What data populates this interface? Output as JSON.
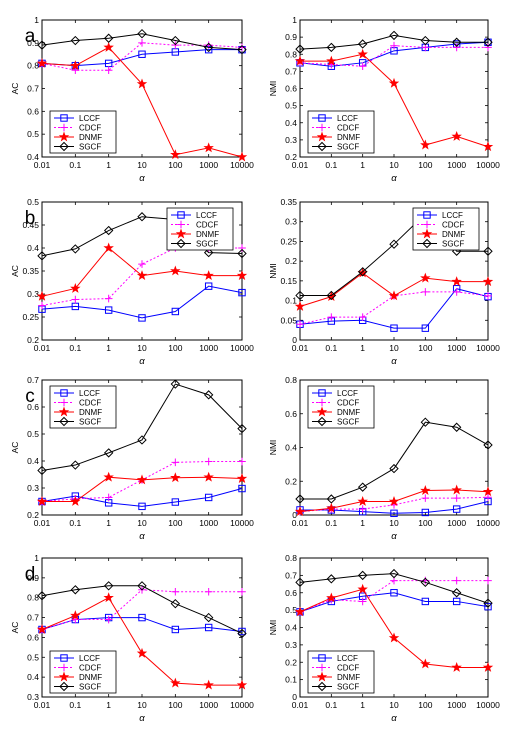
{
  "chart_data": [
    {
      "type": "line",
      "row_label": "a",
      "x": [
        "0.01",
        "0.1",
        "1",
        "10",
        "100",
        "1000",
        "10000"
      ],
      "xlabel": "α",
      "ylabel": "AC",
      "ylim": [
        0.4,
        1
      ],
      "yticks": [
        "0.4",
        "0.5",
        "0.6",
        "0.7",
        "0.8",
        "0.9",
        "1"
      ],
      "legend": "bottom-left",
      "series": [
        {
          "name": "LCCF",
          "color": "#0000ff",
          "marker": "square",
          "dashed": false,
          "values": [
            0.81,
            0.8,
            0.81,
            0.85,
            0.86,
            0.87,
            0.87
          ]
        },
        {
          "name": "CDCF",
          "color": "#ff00ff",
          "marker": "plus",
          "dashed": true,
          "values": [
            0.81,
            0.78,
            0.78,
            0.9,
            0.89,
            0.89,
            0.88
          ]
        },
        {
          "name": "DNMF",
          "color": "#ff0000",
          "marker": "star",
          "dashed": false,
          "values": [
            0.81,
            0.8,
            0.88,
            0.72,
            0.41,
            0.44,
            0.4
          ]
        },
        {
          "name": "SGCF",
          "color": "#000000",
          "marker": "diamond",
          "dashed": false,
          "values": [
            0.89,
            0.91,
            0.92,
            0.94,
            0.91,
            0.88,
            0.87
          ]
        }
      ]
    },
    {
      "type": "line",
      "row_label": "",
      "x": [
        "0.01",
        "0.1",
        "1",
        "10",
        "100",
        "1000",
        "10000"
      ],
      "xlabel": "α",
      "ylabel": "NMI",
      "ylim": [
        0.2,
        1
      ],
      "yticks": [
        "0.2",
        "0.3",
        "0.4",
        "0.5",
        "0.6",
        "0.7",
        "0.8",
        "0.9",
        "1"
      ],
      "legend": "bottom-left",
      "series": [
        {
          "name": "LCCF",
          "color": "#0000ff",
          "marker": "square",
          "dashed": false,
          "values": [
            0.75,
            0.73,
            0.75,
            0.82,
            0.84,
            0.86,
            0.87
          ]
        },
        {
          "name": "CDCF",
          "color": "#ff00ff",
          "marker": "plus",
          "dashed": true,
          "values": [
            0.75,
            0.74,
            0.73,
            0.85,
            0.84,
            0.84,
            0.84
          ]
        },
        {
          "name": "DNMF",
          "color": "#ff0000",
          "marker": "star",
          "dashed": false,
          "values": [
            0.76,
            0.76,
            0.8,
            0.63,
            0.27,
            0.32,
            0.26
          ]
        },
        {
          "name": "SGCF",
          "color": "#000000",
          "marker": "diamond",
          "dashed": false,
          "values": [
            0.83,
            0.84,
            0.86,
            0.91,
            0.88,
            0.87,
            0.87
          ]
        }
      ]
    },
    {
      "type": "line",
      "row_label": "b",
      "x": [
        "0.01",
        "0.1",
        "1",
        "10",
        "100",
        "1000",
        "10000"
      ],
      "xlabel": "α",
      "ylabel": "AC",
      "ylim": [
        0.2,
        0.5
      ],
      "yticks": [
        "0.2",
        "0.25",
        "0.3",
        "0.35",
        "0.4",
        "0.45",
        "0.5"
      ],
      "legend": "top-right",
      "series": [
        {
          "name": "LCCF",
          "color": "#0000ff",
          "marker": "square",
          "dashed": false,
          "values": [
            0.267,
            0.273,
            0.265,
            0.248,
            0.262,
            0.317,
            0.303
          ]
        },
        {
          "name": "CDCF",
          "color": "#ff00ff",
          "marker": "plus",
          "dashed": true,
          "values": [
            0.275,
            0.288,
            0.29,
            0.365,
            0.4,
            0.4,
            0.4
          ]
        },
        {
          "name": "DNMF",
          "color": "#ff0000",
          "marker": "star",
          "dashed": false,
          "values": [
            0.295,
            0.312,
            0.4,
            0.34,
            0.35,
            0.34,
            0.34
          ]
        },
        {
          "name": "SGCF",
          "color": "#000000",
          "marker": "diamond",
          "dashed": false,
          "values": [
            0.383,
            0.398,
            0.438,
            0.468,
            0.462,
            0.39,
            0.388
          ]
        }
      ]
    },
    {
      "type": "line",
      "row_label": "",
      "x": [
        "0.01",
        "0.1",
        "1",
        "10",
        "100",
        "1000",
        "10000"
      ],
      "xlabel": "α",
      "ylabel": "NMI",
      "ylim": [
        0,
        0.35
      ],
      "yticks": [
        "0",
        "0.05",
        "0.1",
        "0.15",
        "0.2",
        "0.25",
        "0.3",
        "0.35"
      ],
      "legend": "top-right",
      "series": [
        {
          "name": "LCCF",
          "color": "#0000ff",
          "marker": "square",
          "dashed": false,
          "values": [
            0.04,
            0.048,
            0.05,
            0.03,
            0.03,
            0.13,
            0.11
          ]
        },
        {
          "name": "CDCF",
          "color": "#ff00ff",
          "marker": "plus",
          "dashed": true,
          "values": [
            0.04,
            0.058,
            0.058,
            0.112,
            0.122,
            0.122,
            0.112
          ]
        },
        {
          "name": "DNMF",
          "color": "#ff0000",
          "marker": "star",
          "dashed": false,
          "values": [
            0.085,
            0.11,
            0.17,
            0.112,
            0.157,
            0.148,
            0.148
          ]
        },
        {
          "name": "SGCF",
          "color": "#000000",
          "marker": "diamond",
          "dashed": false,
          "values": [
            0.113,
            0.113,
            0.173,
            0.243,
            0.32,
            0.225,
            0.225
          ]
        }
      ]
    },
    {
      "type": "line",
      "row_label": "c",
      "x": [
        "0.01",
        "0.1",
        "1",
        "10",
        "100",
        "1000",
        "10000"
      ],
      "xlabel": "α",
      "ylabel": "AC",
      "ylim": [
        0.2,
        0.7
      ],
      "yticks": [
        "0.2",
        "0.3",
        "0.4",
        "0.5",
        "0.6",
        "0.7"
      ],
      "legend": "top-left",
      "series": [
        {
          "name": "LCCF",
          "color": "#0000ff",
          "marker": "square",
          "dashed": false,
          "values": [
            0.25,
            0.27,
            0.245,
            0.232,
            0.248,
            0.265,
            0.298
          ]
        },
        {
          "name": "CDCF",
          "color": "#ff00ff",
          "marker": "plus",
          "dashed": true,
          "values": [
            0.25,
            0.26,
            0.265,
            0.33,
            0.395,
            0.398,
            0.398
          ]
        },
        {
          "name": "DNMF",
          "color": "#ff0000",
          "marker": "star",
          "dashed": false,
          "values": [
            0.25,
            0.25,
            0.34,
            0.33,
            0.338,
            0.34,
            0.335
          ]
        },
        {
          "name": "SGCF",
          "color": "#000000",
          "marker": "diamond",
          "dashed": false,
          "values": [
            0.365,
            0.385,
            0.43,
            0.478,
            0.685,
            0.645,
            0.52
          ]
        }
      ]
    },
    {
      "type": "line",
      "row_label": "",
      "x": [
        "0.01",
        "0.1",
        "1",
        "10",
        "100",
        "1000",
        "10000"
      ],
      "xlabel": "α",
      "ylabel": "NMI",
      "ylim": [
        0,
        0.8
      ],
      "yticks": [
        "0",
        "0.2",
        "0.4",
        "0.6",
        "0.8"
      ],
      "legend": "top-left",
      "series": [
        {
          "name": "LCCF",
          "color": "#0000ff",
          "marker": "square",
          "dashed": false,
          "values": [
            0.03,
            0.03,
            0.02,
            0.01,
            0.015,
            0.035,
            0.08
          ]
        },
        {
          "name": "CDCF",
          "color": "#ff00ff",
          "marker": "plus",
          "dashed": true,
          "values": [
            0.02,
            0.035,
            0.035,
            0.06,
            0.1,
            0.1,
            0.105
          ]
        },
        {
          "name": "DNMF",
          "color": "#ff0000",
          "marker": "star",
          "dashed": false,
          "values": [
            0.02,
            0.04,
            0.08,
            0.08,
            0.145,
            0.148,
            0.138
          ]
        },
        {
          "name": "SGCF",
          "color": "#000000",
          "marker": "diamond",
          "dashed": false,
          "values": [
            0.095,
            0.095,
            0.165,
            0.275,
            0.55,
            0.52,
            0.415
          ]
        }
      ]
    },
    {
      "type": "line",
      "row_label": "d",
      "x": [
        "0.01",
        "0.1",
        "1",
        "10",
        "100",
        "1000",
        "10000"
      ],
      "xlabel": "α",
      "ylabel": "AC",
      "ylim": [
        0.3,
        1
      ],
      "yticks": [
        "0.3",
        "0.4",
        "0.5",
        "0.6",
        "0.7",
        "0.8",
        "0.9",
        "1"
      ],
      "legend": "bottom-left",
      "series": [
        {
          "name": "LCCF",
          "color": "#0000ff",
          "marker": "square",
          "dashed": false,
          "values": [
            0.64,
            0.69,
            0.7,
            0.7,
            0.64,
            0.65,
            0.63
          ]
        },
        {
          "name": "CDCF",
          "color": "#ff00ff",
          "marker": "plus",
          "dashed": true,
          "values": [
            0.64,
            0.69,
            0.69,
            0.84,
            0.83,
            0.83,
            0.83
          ]
        },
        {
          "name": "DNMF",
          "color": "#ff0000",
          "marker": "star",
          "dashed": false,
          "values": [
            0.64,
            0.71,
            0.8,
            0.52,
            0.37,
            0.36,
            0.36
          ]
        },
        {
          "name": "SGCF",
          "color": "#000000",
          "marker": "diamond",
          "dashed": false,
          "values": [
            0.81,
            0.84,
            0.86,
            0.86,
            0.77,
            0.7,
            0.62
          ]
        }
      ]
    },
    {
      "type": "line",
      "row_label": "",
      "x": [
        "0.01",
        "0.1",
        "1",
        "10",
        "100",
        "1000",
        "10000"
      ],
      "xlabel": "α",
      "ylabel": "NMI",
      "ylim": [
        0,
        0.8
      ],
      "yticks": [
        "0",
        "0.1",
        "0.2",
        "0.3",
        "0.4",
        "0.5",
        "0.6",
        "0.7",
        "0.8"
      ],
      "legend": "bottom-left",
      "series": [
        {
          "name": "LCCF",
          "color": "#0000ff",
          "marker": "square",
          "dashed": false,
          "values": [
            0.49,
            0.55,
            0.58,
            0.6,
            0.55,
            0.55,
            0.52
          ]
        },
        {
          "name": "CDCF",
          "color": "#ff00ff",
          "marker": "plus",
          "dashed": true,
          "values": [
            0.49,
            0.56,
            0.55,
            0.67,
            0.67,
            0.67,
            0.67
          ]
        },
        {
          "name": "DNMF",
          "color": "#ff0000",
          "marker": "star",
          "dashed": false,
          "values": [
            0.49,
            0.57,
            0.62,
            0.34,
            0.19,
            0.17,
            0.17
          ]
        },
        {
          "name": "SGCF",
          "color": "#000000",
          "marker": "diamond",
          "dashed": false,
          "values": [
            0.66,
            0.68,
            0.7,
            0.71,
            0.66,
            0.6,
            0.54
          ]
        }
      ]
    }
  ]
}
